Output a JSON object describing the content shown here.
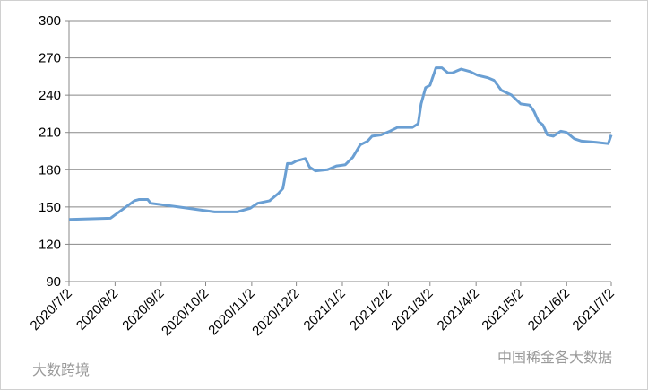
{
  "chart_data": {
    "type": "line",
    "x": [
      "2020/7/2",
      "2020/7/30",
      "2020/8/15",
      "2020/8/18",
      "2020/8/24",
      "2020/8/26",
      "2020/9/14",
      "2020/10/8",
      "2020/10/23",
      "2020/11/1",
      "2020/11/6",
      "2020/11/14",
      "2020/11/20",
      "2020/11/23",
      "2020/11/26",
      "2020/11/29",
      "2020/12/2",
      "2020/12/8",
      "2020/12/11",
      "2020/12/15",
      "2020/12/23",
      "2020/12/29",
      "2021/1/4",
      "2021/1/9",
      "2021/1/14",
      "2021/1/19",
      "2021/1/22",
      "2021/1/28",
      "2021/2/3",
      "2021/2/8",
      "2021/2/18",
      "2021/2/22",
      "2021/2/24",
      "2021/2/27",
      "2021/3/2",
      "2021/3/6",
      "2021/3/10",
      "2021/3/14",
      "2021/3/17",
      "2021/3/23",
      "2021/3/29",
      "2021/4/3",
      "2021/4/10",
      "2021/4/14",
      "2021/4/19",
      "2021/4/26",
      "2021/5/2",
      "2021/5/8",
      "2021/5/11",
      "2021/5/14",
      "2021/5/17",
      "2021/5/20",
      "2021/5/24",
      "2021/5/29",
      "2021/6/2",
      "2021/6/7",
      "2021/6/12",
      "2021/6/22",
      "2021/6/30",
      "2021/7/2"
    ],
    "series": [
      {
        "color": "#6a9fd3",
        "values": [
          140,
          141,
          155,
          156,
          156,
          153,
          150,
          146,
          146,
          149,
          153,
          155,
          161,
          165,
          185,
          185,
          187,
          189,
          182,
          179,
          180,
          183,
          184,
          190,
          200,
          203,
          207,
          208,
          211,
          214,
          214,
          217,
          233,
          246,
          248,
          262,
          262,
          258,
          258,
          261,
          259,
          256,
          254,
          252,
          244,
          240,
          233,
          232,
          227,
          219,
          216,
          208,
          207,
          211,
          210,
          205,
          203,
          202,
          201,
          208
        ]
      }
    ],
    "xlim": [
      "2020/7/2",
      "2021/7/2"
    ],
    "xticks": [
      "2020/7/2",
      "2020/8/2",
      "2020/9/2",
      "2020/10/2",
      "2020/11/2",
      "2020/12/2",
      "2021/1/2",
      "2021/2/2",
      "2021/3/2",
      "2021/4/2",
      "2021/5/2",
      "2021/6/2",
      "2021/7/2"
    ],
    "ylim": [
      90,
      300
    ],
    "yticks": [
      90,
      120,
      150,
      180,
      210,
      240,
      270,
      300
    ],
    "grid": true,
    "watermarks": [
      "大数跨境",
      "中国稀金各大数据"
    ]
  }
}
